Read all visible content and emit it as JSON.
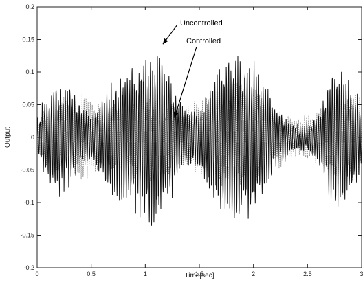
{
  "chart_data": {
    "type": "line",
    "xlabel": "Time[sec]",
    "ylabel": "Output",
    "xlim": [
      0,
      3
    ],
    "ylim": [
      -0.2,
      0.2
    ],
    "x_ticks": [
      0,
      0.5,
      1,
      1.5,
      2,
      2.5,
      3
    ],
    "x_tick_labels": [
      "0",
      "0.5",
      "1",
      "1.5",
      "2",
      "2.5",
      "3"
    ],
    "y_ticks": [
      -0.2,
      -0.15,
      -0.1,
      -0.05,
      0,
      0.05,
      0.1,
      0.15,
      0.2
    ],
    "y_tick_labels": [
      "-0.2",
      "-0.15",
      "-0.1",
      "-0.05",
      "0",
      "0.05",
      "0.1",
      "0.15",
      "0.2"
    ],
    "grid": false,
    "annotations": [
      {
        "text": "Uncontrolled",
        "target": [
          1.15,
          0.145
        ]
      },
      {
        "text": "Controlled",
        "target": [
          1.27,
          0.03
        ]
      }
    ],
    "series": [
      {
        "style": "solid",
        "color": "#111111",
        "t": [
          0,
          0.1,
          0.2,
          0.3,
          0.4,
          0.5,
          0.6,
          0.7,
          0.8,
          0.9,
          1.0,
          1.1,
          1.15,
          1.2,
          1.3,
          1.4,
          1.5,
          1.6,
          1.7,
          1.8,
          1.9,
          2.0,
          2.1,
          2.2,
          2.3,
          2.4,
          2.5,
          2.6,
          2.7,
          2.8,
          2.9,
          3.0
        ],
        "envelope": [
          0.03,
          0.07,
          0.09,
          0.08,
          0.05,
          0.04,
          0.06,
          0.09,
          0.11,
          0.12,
          0.13,
          0.14,
          0.145,
          0.12,
          0.07,
          0.04,
          0.05,
          0.09,
          0.12,
          0.13,
          0.13,
          0.12,
          0.09,
          0.05,
          0.03,
          0.02,
          0.02,
          0.04,
          0.09,
          0.12,
          0.09,
          0.06
        ],
        "frequency_hz": 47
      },
      {
        "style": "dotted",
        "color": "#8a8a8a",
        "t": [
          0,
          0.2,
          0.4,
          0.6,
          0.8,
          1.0,
          1.2,
          1.4,
          1.6,
          1.8,
          2.0,
          2.2,
          2.4,
          2.6,
          2.8,
          3.0
        ],
        "envelope": [
          0.03,
          0.06,
          0.07,
          0.05,
          0.06,
          0.07,
          0.06,
          0.05,
          0.07,
          0.09,
          0.08,
          0.05,
          0.03,
          0.04,
          0.08,
          0.06
        ],
        "frequency_hz": 53
      }
    ]
  }
}
